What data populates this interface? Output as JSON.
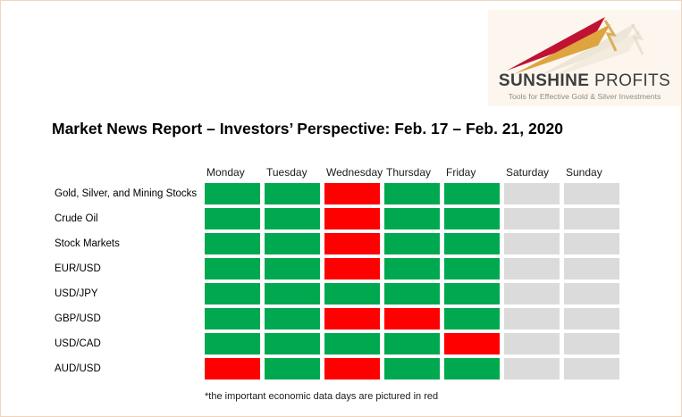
{
  "page": {
    "title": "Market News Report – Investors’ Perspective: Feb. 17 – Feb. 21, 2020",
    "footnote": "*the important economic data days are pictured in red"
  },
  "logo": {
    "brand_bold": "SUNSHINE",
    "brand_light": "PROFITS",
    "tagline": "Tools for Effective Gold & Silver Investments"
  },
  "colors": {
    "green": "#00a94f",
    "red": "#fe0000",
    "gray": "#dbdbdb",
    "page_border": "#f2d4bc",
    "logo_background": "#fcf6ee",
    "logo_red_ray": "#c01334",
    "logo_gold_ray": "#dda43f"
  },
  "chart_data": {
    "type": "heatmap",
    "title": "Market News Report – Investors’ Perspective: Feb. 17 – Feb. 21, 2020",
    "columns": [
      "Monday",
      "Tuesday",
      "Wednesday",
      "Thursday",
      "Friday",
      "Saturday",
      "Sunday"
    ],
    "rows": [
      {
        "label": "Gold, Silver, and Mining Stocks",
        "cells": [
          "green",
          "green",
          "red",
          "green",
          "green",
          "gray",
          "gray"
        ]
      },
      {
        "label": "Crude Oil",
        "cells": [
          "green",
          "green",
          "red",
          "green",
          "green",
          "gray",
          "gray"
        ]
      },
      {
        "label": "Stock Markets",
        "cells": [
          "green",
          "green",
          "red",
          "green",
          "green",
          "gray",
          "gray"
        ]
      },
      {
        "label": "EUR/USD",
        "cells": [
          "green",
          "green",
          "red",
          "green",
          "green",
          "gray",
          "gray"
        ]
      },
      {
        "label": "USD/JPY",
        "cells": [
          "green",
          "green",
          "green",
          "green",
          "green",
          "gray",
          "gray"
        ]
      },
      {
        "label": "GBP/USD",
        "cells": [
          "green",
          "green",
          "red",
          "red",
          "green",
          "gray",
          "gray"
        ]
      },
      {
        "label": "USD/CAD",
        "cells": [
          "green",
          "green",
          "green",
          "green",
          "red",
          "gray",
          "gray"
        ]
      },
      {
        "label": "AUD/USD",
        "cells": [
          "red",
          "green",
          "red",
          "green",
          "green",
          "gray",
          "gray"
        ]
      }
    ],
    "cell_legend": "*the important economic data days are pictured in red",
    "layout": {
      "grid": "off",
      "weekend_columns_inactive": [
        "Saturday",
        "Sunday"
      ]
    }
  }
}
